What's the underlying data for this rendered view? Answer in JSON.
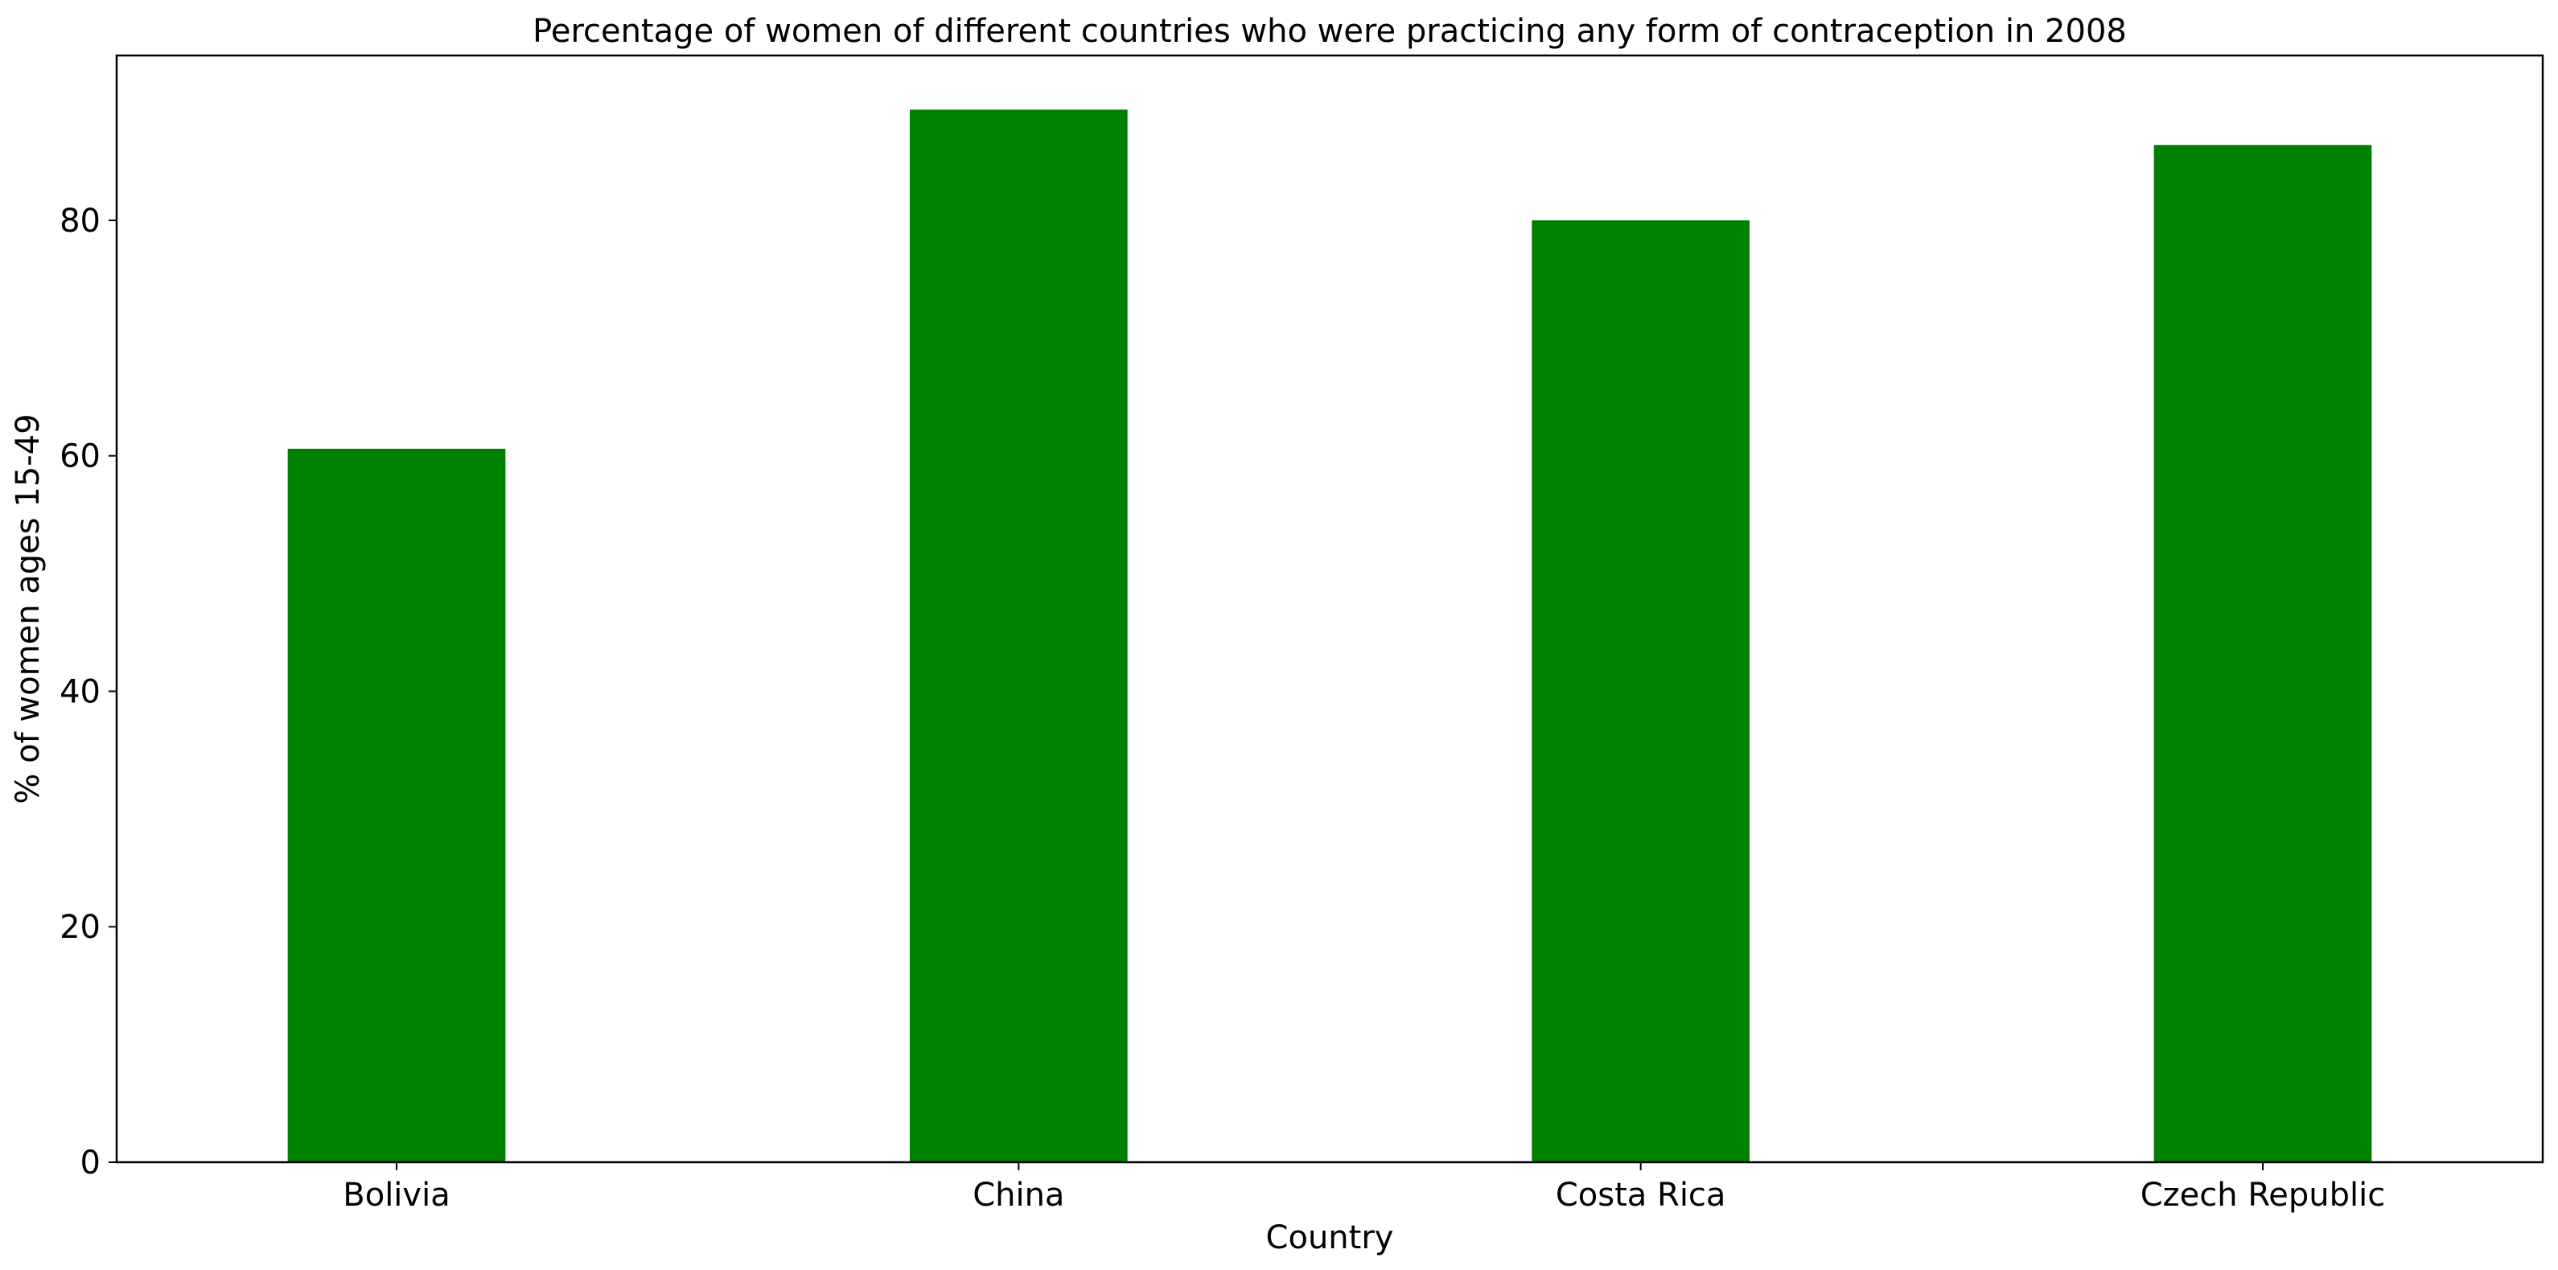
{
  "chart_data": {
    "type": "bar",
    "title": "Percentage of women of different countries who were practicing any form of contraception in 2008",
    "xlabel": "Country",
    "ylabel": "% of women ages 15-49",
    "categories": [
      "Bolivia",
      "China",
      "Costa Rica",
      "Czech Republic"
    ],
    "values": [
      60.6,
      89.4,
      80.0,
      86.4
    ],
    "ylim": [
      0,
      94
    ],
    "yticks": [
      0,
      20,
      40,
      60,
      80
    ],
    "ytick_labels": [
      "0",
      "20",
      "40",
      "60",
      "80"
    ],
    "bar_color": "#008000",
    "grid": false,
    "legend": false
  }
}
